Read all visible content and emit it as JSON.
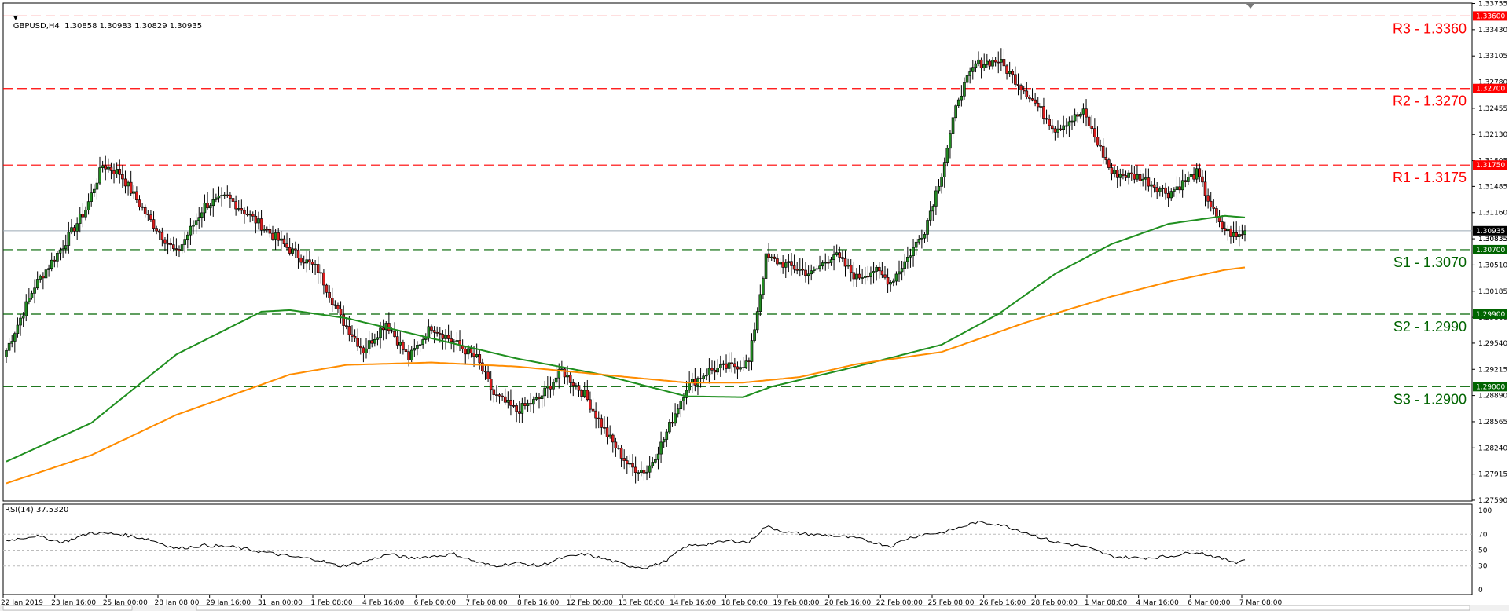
{
  "window": {
    "symbol_line": "GBPUSD,H4  1.30858 1.30983 1.30829 1.30935",
    "rsi_label": "RSI(14) 37.5320"
  },
  "colors": {
    "background": "#ffffff",
    "bull": "#228b22",
    "bear": "#dc1e1e",
    "resistance": "#ff0000",
    "support": "#006400",
    "ma_fast": "#1f8f1f",
    "ma_slow": "#ff8c00",
    "price_line": "#9aa9b5",
    "rsi_line": "#000000"
  },
  "chart_data": {
    "type": "candlestick",
    "symbol": "GBPUSD",
    "timeframe": "H4",
    "ylim": [
      1.2758,
      1.3376
    ],
    "current_price": 1.30935,
    "y_ticks": [
      "1.33755",
      "1.33430",
      "1.33105",
      "1.32780",
      "1.32455",
      "1.32130",
      "1.31805",
      "1.31485",
      "1.31160",
      "1.30835",
      "1.30510",
      "1.30185",
      "1.29860",
      "1.29540",
      "1.29215",
      "1.28890",
      "1.28565",
      "1.28240",
      "1.27915",
      "1.27590"
    ],
    "x_labels": [
      "22 Jan 2019",
      "23 Jan 16:00",
      "25 Jan 00:00",
      "28 Jan 08:00",
      "29 Jan 16:00",
      "31 Jan 00:00",
      "1 Feb 08:00",
      "4 Feb 16:00",
      "6 Feb 00:00",
      "7 Feb 08:00",
      "8 Feb 16:00",
      "12 Feb 00:00",
      "13 Feb 08:00",
      "14 Feb 16:00",
      "18 Feb 00:00",
      "19 Feb 08:00",
      "20 Feb 16:00",
      "22 Feb 00:00",
      "25 Feb 08:00",
      "26 Feb 16:00",
      "28 Feb 00:00",
      "1 Mar 08:00",
      "4 Mar 16:00",
      "6 Mar 00:00",
      "7 Mar 08:00"
    ],
    "levels": [
      {
        "name": "R3",
        "label": "R3 - 1.3360",
        "value": 1.336,
        "tag": "1.33600",
        "kind": "resistance"
      },
      {
        "name": "R2",
        "label": "R2 - 1.3270",
        "value": 1.327,
        "tag": "1.32700",
        "kind": "resistance"
      },
      {
        "name": "R1",
        "label": "R1 - 1.3175",
        "value": 1.3175,
        "tag": "1.31750",
        "kind": "resistance"
      },
      {
        "name": "S1",
        "label": "S1 - 1.3070",
        "value": 1.307,
        "tag": "1.30700",
        "kind": "support"
      },
      {
        "name": "S2",
        "label": "S2 - 1.2990",
        "value": 1.299,
        "tag": "1.29900",
        "kind": "support"
      },
      {
        "name": "S3",
        "label": "S3 - 1.2900",
        "value": 1.29,
        "tag": "1.29000",
        "kind": "support"
      }
    ],
    "extra_tags": [
      "1.30935",
      "1.30835"
    ],
    "close_path": [
      [
        0,
        1.2945
      ],
      [
        10,
        1.3025
      ],
      [
        20,
        1.3075
      ],
      [
        28,
        1.312
      ],
      [
        34,
        1.3175
      ],
      [
        40,
        1.3165
      ],
      [
        50,
        1.311
      ],
      [
        60,
        1.3065
      ],
      [
        70,
        1.3125
      ],
      [
        78,
        1.3135
      ],
      [
        90,
        1.31
      ],
      [
        100,
        1.307
      ],
      [
        110,
        1.3045
      ],
      [
        118,
        1.2985
      ],
      [
        126,
        1.2945
      ],
      [
        134,
        1.298
      ],
      [
        142,
        1.2935
      ],
      [
        150,
        1.2975
      ],
      [
        158,
        1.2955
      ],
      [
        166,
        1.2935
      ],
      [
        172,
        1.289
      ],
      [
        180,
        1.287
      ],
      [
        188,
        1.2885
      ],
      [
        196,
        1.292
      ],
      [
        204,
        1.289
      ],
      [
        212,
        1.284
      ],
      [
        220,
        1.28
      ],
      [
        226,
        1.2795
      ],
      [
        232,
        1.2835
      ],
      [
        240,
        1.29
      ],
      [
        248,
        1.292
      ],
      [
        256,
        1.2925
      ],
      [
        262,
        1.293
      ],
      [
        268,
        1.306
      ],
      [
        276,
        1.305
      ],
      [
        284,
        1.304
      ],
      [
        292,
        1.3065
      ],
      [
        300,
        1.3035
      ],
      [
        306,
        1.3045
      ],
      [
        312,
        1.303
      ],
      [
        318,
        1.306
      ],
      [
        324,
        1.3095
      ],
      [
        330,
        1.3165
      ],
      [
        336,
        1.326
      ],
      [
        342,
        1.33
      ],
      [
        350,
        1.3305
      ],
      [
        360,
        1.3265
      ],
      [
        370,
        1.322
      ],
      [
        380,
        1.324
      ],
      [
        390,
        1.3165
      ],
      [
        400,
        1.316
      ],
      [
        410,
        1.314
      ],
      [
        420,
        1.3165
      ],
      [
        428,
        1.31
      ],
      [
        434,
        1.3085
      ],
      [
        437,
        1.30935
      ]
    ],
    "series": [
      {
        "name": "MA fast",
        "values": [
          [
            0,
            1.2807
          ],
          [
            30,
            1.2855
          ],
          [
            60,
            1.294
          ],
          [
            90,
            1.2993
          ],
          [
            100,
            1.2995
          ],
          [
            120,
            1.2985
          ],
          [
            150,
            1.296
          ],
          [
            180,
            1.2935
          ],
          [
            210,
            1.2915
          ],
          [
            240,
            1.2888
          ],
          [
            260,
            1.2887
          ],
          [
            270,
            1.29
          ],
          [
            300,
            1.2925
          ],
          [
            330,
            1.2952
          ],
          [
            350,
            1.299
          ],
          [
            370,
            1.304
          ],
          [
            390,
            1.3077
          ],
          [
            410,
            1.3102
          ],
          [
            430,
            1.3112
          ],
          [
            437,
            1.311
          ]
        ]
      },
      {
        "name": "MA slow",
        "values": [
          [
            0,
            1.278
          ],
          [
            30,
            1.2815
          ],
          [
            60,
            1.2865
          ],
          [
            100,
            1.2915
          ],
          [
            120,
            1.2927
          ],
          [
            150,
            1.293
          ],
          [
            180,
            1.2925
          ],
          [
            210,
            1.2915
          ],
          [
            240,
            1.2905
          ],
          [
            260,
            1.2905
          ],
          [
            280,
            1.2912
          ],
          [
            300,
            1.2928
          ],
          [
            330,
            1.2943
          ],
          [
            360,
            1.298
          ],
          [
            390,
            1.3012
          ],
          [
            410,
            1.303
          ],
          [
            430,
            1.3045
          ],
          [
            437,
            1.3048
          ]
        ]
      }
    ],
    "rsi": {
      "ylim": [
        0,
        100
      ],
      "levels": [
        30,
        50,
        70
      ],
      "tick_labels": [
        "100",
        "70",
        "50",
        "30",
        "0"
      ],
      "values": [
        [
          0,
          62
        ],
        [
          10,
          68
        ],
        [
          20,
          60
        ],
        [
          30,
          72
        ],
        [
          40,
          70
        ],
        [
          50,
          64
        ],
        [
          60,
          52
        ],
        [
          70,
          56
        ],
        [
          80,
          54
        ],
        [
          90,
          48
        ],
        [
          100,
          42
        ],
        [
          110,
          38
        ],
        [
          115,
          32
        ],
        [
          118,
          30
        ],
        [
          125,
          34
        ],
        [
          135,
          45
        ],
        [
          142,
          40
        ],
        [
          150,
          42
        ],
        [
          158,
          45
        ],
        [
          166,
          35
        ],
        [
          172,
          30
        ],
        [
          180,
          34
        ],
        [
          188,
          30
        ],
        [
          196,
          40
        ],
        [
          204,
          45
        ],
        [
          212,
          38
        ],
        [
          220,
          30
        ],
        [
          226,
          28
        ],
        [
          232,
          35
        ],
        [
          240,
          55
        ],
        [
          248,
          58
        ],
        [
          256,
          62
        ],
        [
          262,
          60
        ],
        [
          268,
          80
        ],
        [
          276,
          72
        ],
        [
          284,
          70
        ],
        [
          292,
          68
        ],
        [
          300,
          65
        ],
        [
          306,
          60
        ],
        [
          312,
          55
        ],
        [
          318,
          65
        ],
        [
          324,
          70
        ],
        [
          330,
          72
        ],
        [
          336,
          78
        ],
        [
          342,
          85
        ],
        [
          350,
          83
        ],
        [
          360,
          72
        ],
        [
          370,
          60
        ],
        [
          380,
          55
        ],
        [
          390,
          42
        ],
        [
          400,
          40
        ],
        [
          410,
          42
        ],
        [
          420,
          48
        ],
        [
          428,
          40
        ],
        [
          434,
          35
        ],
        [
          437,
          38
        ]
      ]
    }
  }
}
